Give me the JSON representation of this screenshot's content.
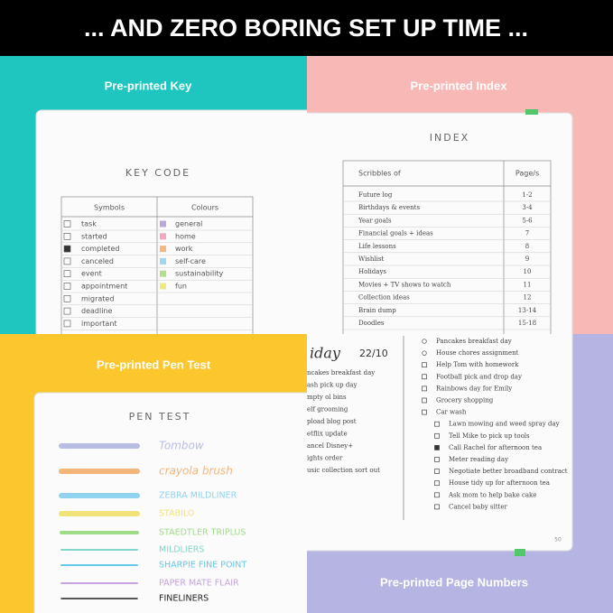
{
  "banner": "... AND ZERO BORING SET UP TIME ...",
  "labels": {
    "key": "Pre-printed Key",
    "index": "Pre-printed Index",
    "pen_test": "Pre-printed Pen Test",
    "page_numbers": "Pre-printed Page Numbers"
  },
  "key": {
    "title": "KEY CODE",
    "headers": [
      "Symbols",
      "Colours"
    ],
    "symbols": [
      "task",
      "started",
      "completed",
      "canceled",
      "event",
      "appointment",
      "migrated",
      "deadline",
      "important"
    ],
    "colours": [
      "general",
      "home",
      "work",
      "self-care",
      "sustainability",
      "fun"
    ]
  },
  "index": {
    "title": "INDEX",
    "headers": [
      "Scribbles of",
      "Page/s"
    ],
    "rows": [
      [
        "Future log",
        "1-2"
      ],
      [
        "Birthdays & events",
        "3-4"
      ],
      [
        "Year goals",
        "5-6"
      ],
      [
        "Financial goals + ideas",
        "7"
      ],
      [
        "Life lessons",
        "8"
      ],
      [
        "Wishlist",
        "9"
      ],
      [
        "Holidays",
        "10"
      ],
      [
        "Movies + TV shows to watch",
        "11"
      ],
      [
        "Collection ideas",
        "12"
      ],
      [
        "Brain dump",
        "13-14"
      ],
      [
        "Doodles",
        "15-18"
      ]
    ]
  },
  "pen_test": {
    "title": "PEN TEST",
    "pens": [
      "Tombow",
      "crayola brush",
      "ZEBRA MILDLINER",
      "STABILO",
      "STAEDTLER TRIPLUS",
      "MILDLIERS",
      "SHARPIE FINE POINT",
      "PAPER MATE FLAIR",
      "FINELINERS"
    ]
  },
  "daily": {
    "heading": "iday",
    "date": "22/10",
    "left": [
      "ncakes breakfast day",
      "ash pick up day",
      "mpty ol bins",
      "elf grooming",
      "pload blog post",
      "etflix update",
      "ancel Disney+",
      "ights order",
      "usic collection sort out"
    ],
    "right": [
      "Pancakes breakfast day",
      "House chores assignment",
      "Help Tom with homework",
      "Football pick and drop day",
      "Rainbows day for Emily",
      "Grocery shopping",
      "Car wash",
      "Lawn mowing and weed spray day",
      "Tell Mike to pick up tools",
      "Call Rachel for afternoon tea",
      "Meter reading day",
      "Negotiate better broadband contract",
      "House tidy up for afternoon tea",
      "Ask mom to help bake cake",
      "Cancel baby sitter"
    ],
    "page": "50"
  }
}
